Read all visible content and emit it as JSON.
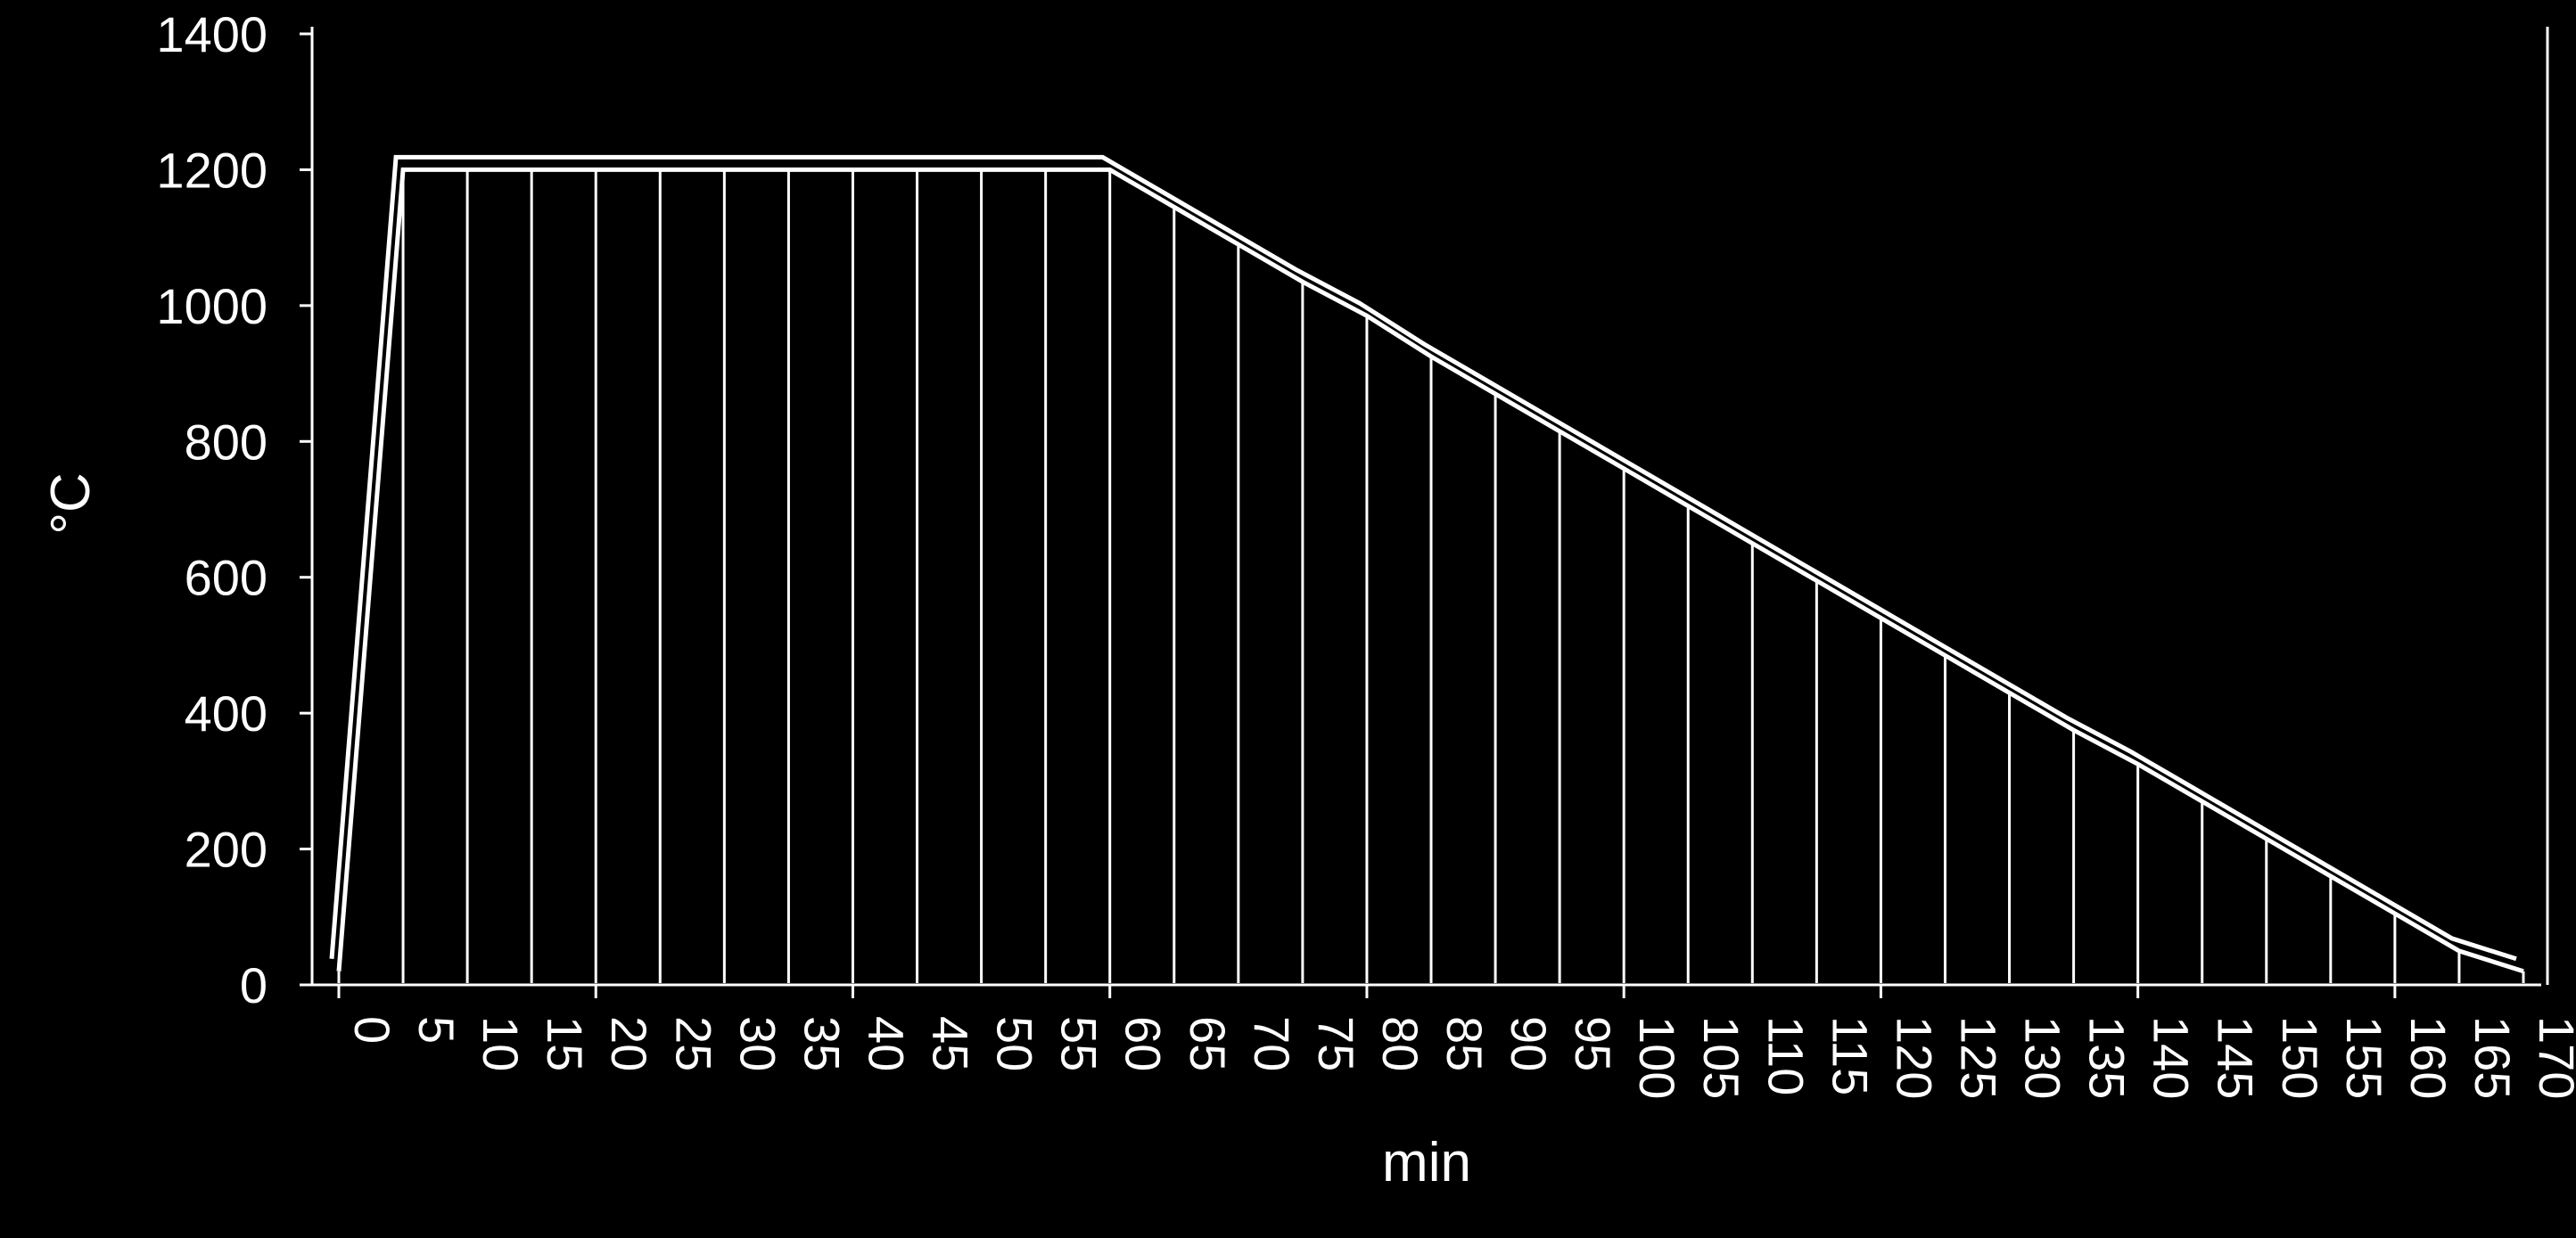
{
  "chart_data": {
    "type": "line",
    "title": "",
    "xlabel": "min",
    "ylabel": "°C",
    "xlim": [
      0,
      170
    ],
    "ylim": [
      0,
      1400
    ],
    "grid": false,
    "x_ticks": [
      0,
      5,
      10,
      15,
      20,
      25,
      30,
      35,
      40,
      45,
      50,
      55,
      60,
      65,
      70,
      75,
      80,
      85,
      90,
      95,
      100,
      105,
      110,
      115,
      120,
      125,
      130,
      135,
      140,
      145,
      150,
      155,
      160,
      165,
      170
    ],
    "y_ticks": [
      0,
      200,
      400,
      600,
      800,
      1000,
      1200,
      1400
    ],
    "series": [
      {
        "values_x": [
          0,
          5,
          10,
          15,
          20,
          25,
          30,
          35,
          40,
          45,
          50,
          55,
          60,
          65,
          70,
          75,
          80,
          85,
          90,
          95,
          100,
          105,
          110,
          115,
          120,
          125,
          130,
          135,
          140,
          145,
          150,
          155,
          160,
          165,
          170
        ],
        "values_y": [
          20,
          1200,
          1200,
          1200,
          1200,
          1200,
          1200,
          1200,
          1200,
          1200,
          1200,
          1200,
          1200,
          1145,
          1090,
          1035,
          985,
          925,
          870,
          815,
          760,
          705,
          650,
          595,
          540,
          485,
          430,
          375,
          325,
          270,
          215,
          160,
          105,
          50,
          20
        ]
      }
    ],
    "colors": {
      "background": "#000000",
      "foreground": "#ffffff"
    }
  }
}
